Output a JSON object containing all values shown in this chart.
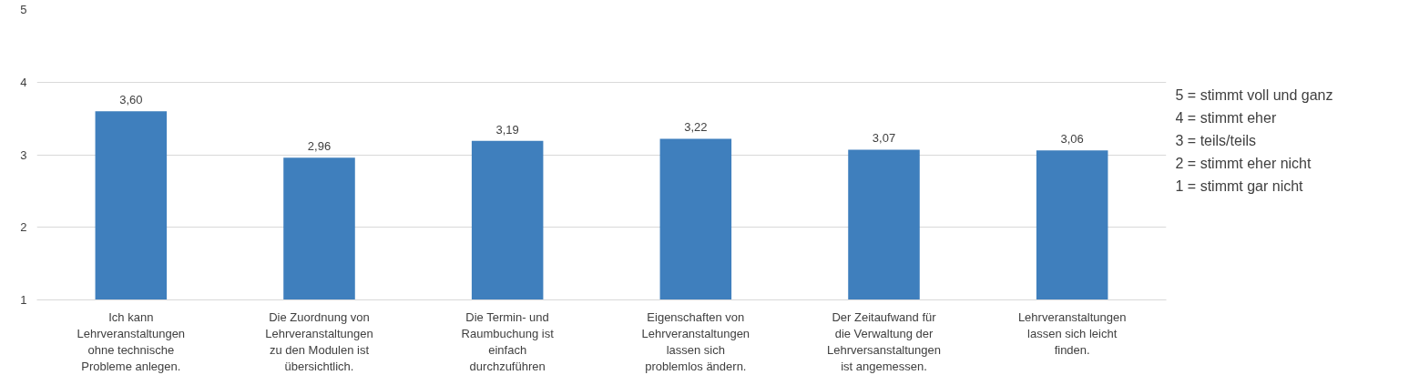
{
  "chart_data": {
    "type": "bar",
    "categories": [
      "Ich kann Lehrveranstaltungen ohne technische Probleme anlegen.",
      "Die Zuordnung von Lehrveranstaltungen zu den Modulen ist übersichtlich.",
      "Die Termin- und Raumbuchung ist einfach durchzuführen",
      "Eigenschaften von Lehrveranstaltungen lassen sich problemlos ändern.",
      "Der Zeitaufwand für die Verwaltung der Lehrversanstaltungen ist angemessen.",
      "Lehrveranstaltungen lassen sich leicht finden."
    ],
    "values": [
      3.6,
      2.96,
      3.19,
      3.22,
      3.07,
      3.06
    ],
    "value_labels": [
      "3,60",
      "2,96",
      "3,19",
      "3,22",
      "3,07",
      "3,06"
    ],
    "color": "#3f7fbd",
    "ylim": [
      1,
      5
    ],
    "yticks": [
      1,
      2,
      3,
      4,
      5
    ],
    "grid": "y",
    "annotations": [
      "5 = stimmt voll und ganz",
      "4 = stimmt eher",
      "3 = teils/teils",
      "2 = stimmt eher nicht",
      "1 = stimmt gar nicht"
    ]
  }
}
